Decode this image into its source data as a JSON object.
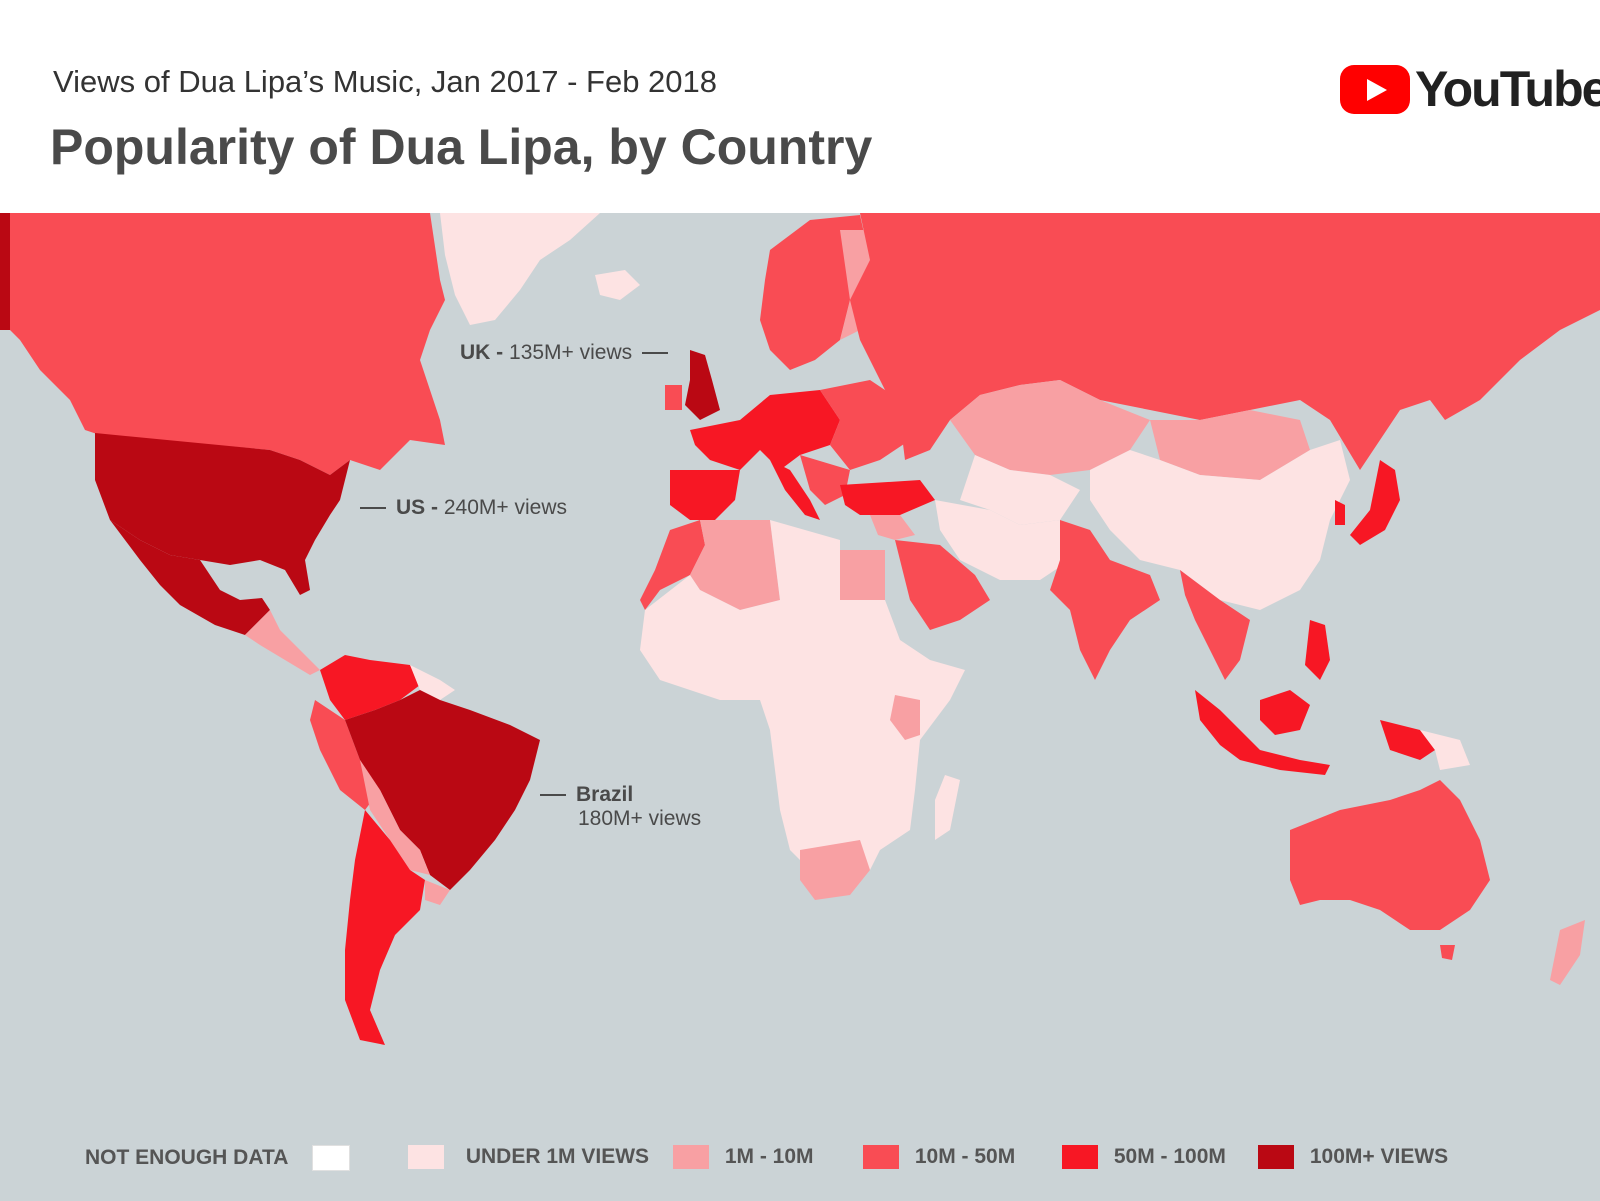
{
  "header": {
    "subtitle": "Views of Dua Lipa’s Music, Jan 2017 - Feb 2018",
    "title": "Popularity of Dua Lipa, by Country",
    "logo_text": "YouTube"
  },
  "colors": {
    "ocean": "#cbd3d6",
    "not_enough_data": "#ffffff",
    "under_1m": "#fde3e3",
    "1m_10m": "#f8a0a3",
    "10m_50m": "#f94c54",
    "50m_100m": "#f71724",
    "100m_plus": "#ba0813",
    "brand_red": "#ff0000"
  },
  "callouts": {
    "uk": {
      "country": "UK -",
      "views": "135M+ views"
    },
    "us": {
      "country": "US -",
      "views": "240M+ views"
    },
    "brazil": {
      "country": "Brazil",
      "views": "180M+ views"
    }
  },
  "legend": [
    {
      "label": "NOT ENOUGH DATA",
      "color_key": "not_enough_data"
    },
    {
      "label": "UNDER 1M VIEWS",
      "color_key": "under_1m"
    },
    {
      "label": "1M - 10M",
      "color_key": "1m_10m"
    },
    {
      "label": "10M - 50M",
      "color_key": "10m_50m"
    },
    {
      "label": "50M - 100M",
      "color_key": "50m_100m"
    },
    {
      "label": "100M+ VIEWS",
      "color_key": "100m_plus"
    }
  ]
}
